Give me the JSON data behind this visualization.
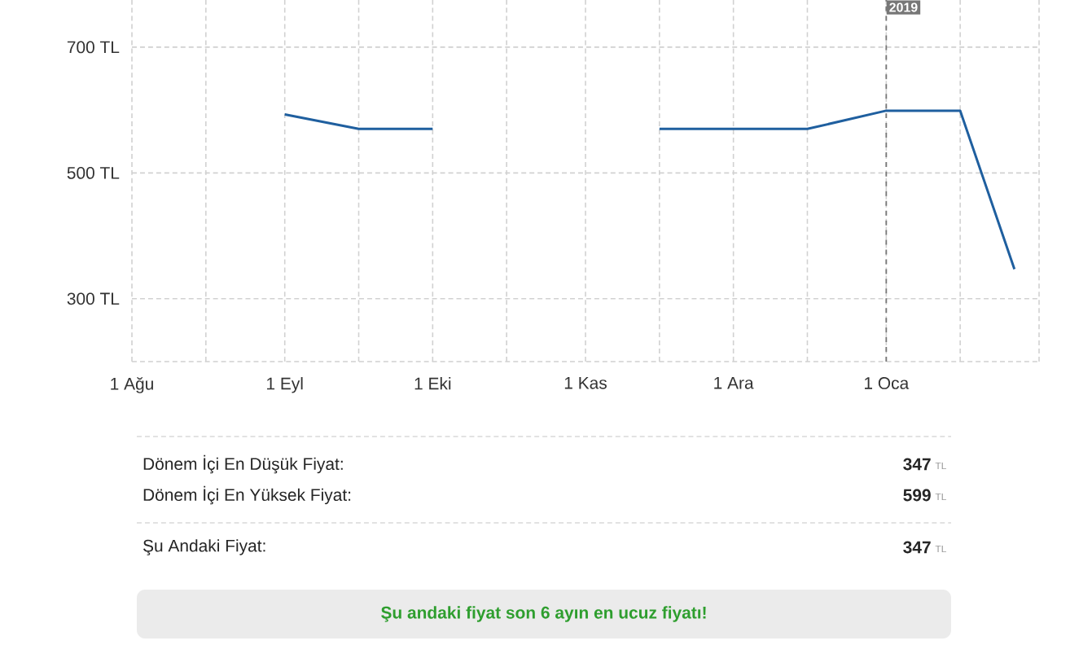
{
  "chart_data": {
    "type": "line",
    "x": [
      "2018-09-01",
      "2018-09-16",
      "2018-10-01",
      "2018-10-16",
      "2018-11-16",
      "2018-12-01",
      "2018-12-16",
      "2019-01-01",
      "2019-01-16",
      "2019-01-27"
    ],
    "series": [
      {
        "color": "#1f5f9f",
        "values": [
          593,
          570,
          570,
          null,
          570,
          570,
          570,
          599,
          599,
          347
        ]
      }
    ],
    "xlim": [
      "2018-08-01",
      "2019-02-01"
    ],
    "xticks": [
      {
        "value": "2018-08-01",
        "label": "1 Ağu"
      },
      {
        "value": "2018-08-16",
        "label": null
      },
      {
        "value": "2018-09-01",
        "label": "1 Eyl"
      },
      {
        "value": "2018-09-16",
        "label": null
      },
      {
        "value": "2018-10-01",
        "label": "1 Eki"
      },
      {
        "value": "2018-10-16",
        "label": null
      },
      {
        "value": "2018-11-01",
        "label": "1 Kas"
      },
      {
        "value": "2018-11-16",
        "label": null
      },
      {
        "value": "2018-12-01",
        "label": "1 Ara"
      },
      {
        "value": "2018-12-16",
        "label": null
      },
      {
        "value": "2019-01-01",
        "label": "1 Oca"
      },
      {
        "value": "2019-01-16",
        "label": null
      },
      {
        "value": "2019-02-01",
        "label": null
      }
    ],
    "ylim": [
      200,
      775
    ],
    "yticks": [
      {
        "value": 200,
        "label": null
      },
      {
        "value": 300,
        "label": "300 TL"
      },
      {
        "value": 500,
        "label": "500 TL"
      },
      {
        "value": 700,
        "label": "700 TL"
      }
    ],
    "grid": true,
    "line_style": "solid",
    "ref_lines": [
      {
        "axis": "x",
        "value": "2019-01-01",
        "label": "2019",
        "color": "#777777",
        "line_style": "dashed"
      }
    ],
    "annotations": [
      "Dönem İçi En Düşük Fiyat:",
      "347",
      "TL",
      "Dönem İçi En Yüksek Fiyat:",
      "599",
      "TL",
      "Şu Andaki Fiyat:",
      "347",
      "TL",
      "Şu andaki fiyat son 6 ayın en ucuz fiyatı!"
    ]
  }
}
